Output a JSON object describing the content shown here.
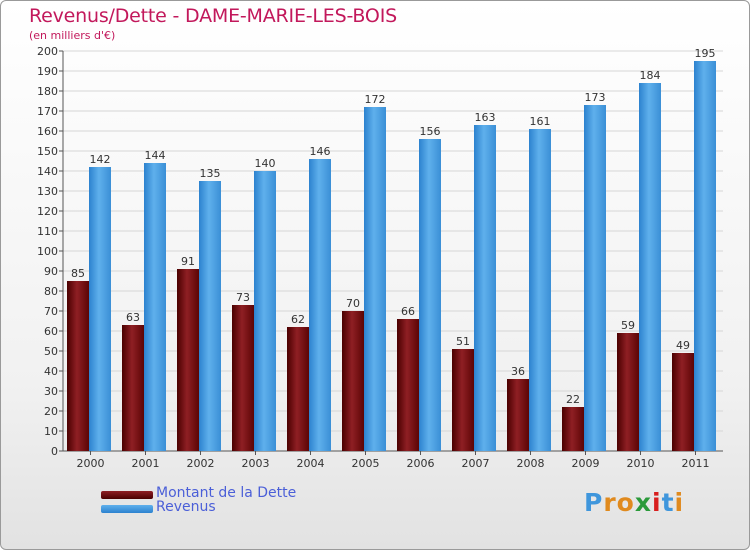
{
  "header": {
    "title": "Revenus/Dette - DAME-MARIE-LES-BOIS",
    "subtitle": "(en milliers d'€)"
  },
  "legend": {
    "items": [
      {
        "label": "Montant de la Dette",
        "color": "#6b0a0a"
      },
      {
        "label": "Revenus",
        "color": "#3f96dc"
      }
    ]
  },
  "logo": {
    "text": "Proxiti",
    "letters": [
      {
        "ch": "P",
        "color": "#3f96dc"
      },
      {
        "ch": "r",
        "color": "#e08a1e"
      },
      {
        "ch": "o",
        "color": "#e08a1e"
      },
      {
        "ch": "x",
        "color": "#2a9a3a"
      },
      {
        "ch": "i",
        "color": "#d81e1e"
      },
      {
        "ch": "t",
        "color": "#3f96dc"
      },
      {
        "ch": "i",
        "color": "#e08a1e"
      }
    ]
  },
  "chart_data": {
    "type": "bar",
    "title": "Revenus/Dette - DAME-MARIE-LES-BOIS",
    "subtitle": "(en milliers d'€)",
    "xlabel": "",
    "ylabel": "",
    "categories": [
      "2000",
      "2001",
      "2002",
      "2003",
      "2004",
      "2005",
      "2006",
      "2007",
      "2008",
      "2009",
      "2010",
      "2011"
    ],
    "series": [
      {
        "name": "Montant de la Dette",
        "color": "#6b0a0a",
        "values": [
          85,
          63,
          91,
          73,
          62,
          70,
          66,
          51,
          36,
          22,
          59,
          49
        ]
      },
      {
        "name": "Revenus",
        "color": "#3f96dc",
        "values": [
          142,
          144,
          135,
          140,
          146,
          172,
          156,
          163,
          161,
          173,
          184,
          195
        ]
      }
    ],
    "ylim": [
      0,
      200
    ],
    "ytick_step": 10,
    "yticks": [
      "0",
      "10",
      "20",
      "30",
      "40",
      "50",
      "60",
      "70",
      "80",
      "90",
      "100",
      "110",
      "120",
      "130",
      "140",
      "150",
      "160",
      "170",
      "180",
      "190",
      "200"
    ],
    "grid": true,
    "legend_position": "bottom-left"
  }
}
